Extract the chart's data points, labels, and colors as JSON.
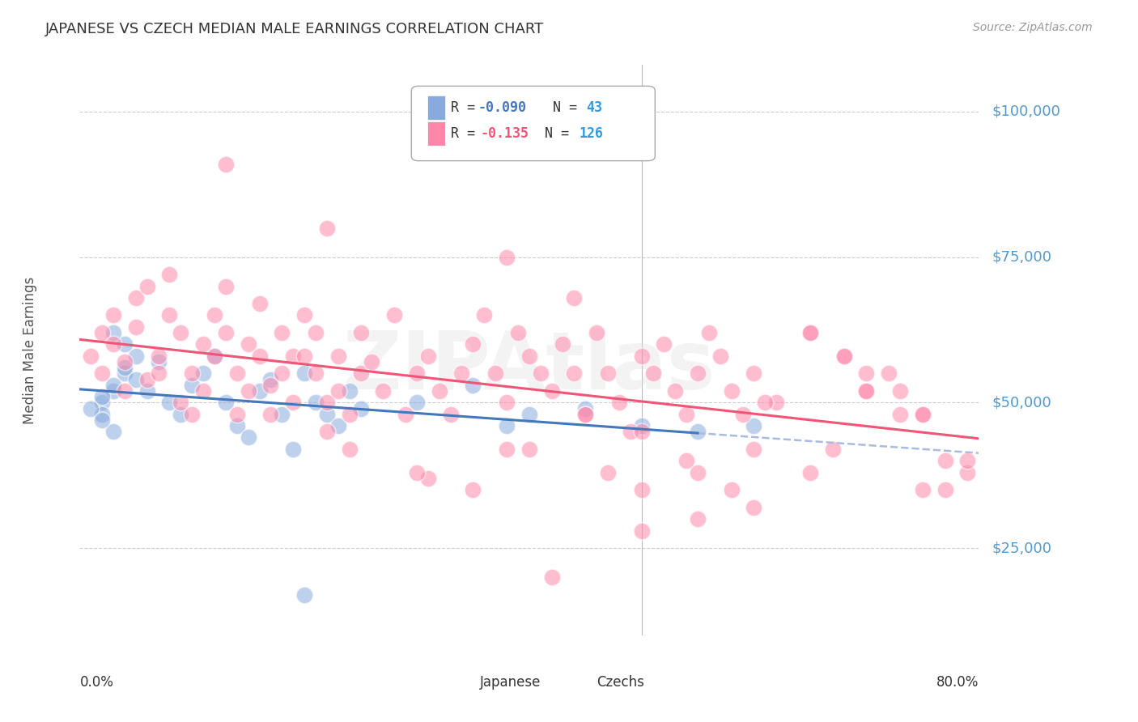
{
  "title": "JAPANESE VS CZECH MEDIAN MALE EARNINGS CORRELATION CHART",
  "source": "Source: ZipAtlas.com",
  "ylabel": "Median Male Earnings",
  "ytick_labels": [
    "$25,000",
    "$50,000",
    "$75,000",
    "$100,000"
  ],
  "ytick_values": [
    25000,
    50000,
    75000,
    100000
  ],
  "ylim": [
    10000,
    108000
  ],
  "xlim": [
    0.0,
    0.8
  ],
  "watermark": "ZIPAtlas",
  "background_color": "#ffffff",
  "title_color": "#333333",
  "ytick_color": "#5599CC",
  "source_color": "#999999",
  "grid_color": "#cccccc",
  "japanese_color": "#88AADD",
  "czech_color": "#FF88AA",
  "japanese_line_color": "#4477BB",
  "czech_line_color": "#EE5577",
  "japanese_dash_color": "#AABBDD",
  "japanese_points_x": [
    0.02,
    0.03,
    0.04,
    0.02,
    0.03,
    0.05,
    0.04,
    0.03,
    0.02,
    0.01,
    0.02,
    0.03,
    0.04,
    0.05,
    0.06,
    0.07,
    0.08,
    0.09,
    0.1,
    0.11,
    0.12,
    0.13,
    0.14,
    0.15,
    0.16,
    0.17,
    0.18,
    0.19,
    0.2,
    0.21,
    0.22,
    0.23,
    0.24,
    0.25,
    0.3,
    0.35,
    0.38,
    0.4,
    0.45,
    0.5,
    0.55,
    0.6,
    0.2
  ],
  "japanese_points_y": [
    50000,
    52000,
    55000,
    48000,
    45000,
    58000,
    60000,
    62000,
    51000,
    49000,
    47000,
    53000,
    56000,
    54000,
    52000,
    57000,
    50000,
    48000,
    53000,
    55000,
    58000,
    50000,
    46000,
    44000,
    52000,
    54000,
    48000,
    42000,
    55000,
    50000,
    48000,
    46000,
    52000,
    49000,
    50000,
    53000,
    46000,
    48000,
    49000,
    46000,
    45000,
    46000,
    17000
  ],
  "czech_points_x": [
    0.01,
    0.02,
    0.02,
    0.03,
    0.03,
    0.04,
    0.04,
    0.05,
    0.05,
    0.06,
    0.06,
    0.07,
    0.07,
    0.08,
    0.08,
    0.09,
    0.09,
    0.1,
    0.1,
    0.11,
    0.11,
    0.12,
    0.12,
    0.13,
    0.13,
    0.14,
    0.14,
    0.15,
    0.15,
    0.16,
    0.16,
    0.17,
    0.17,
    0.18,
    0.18,
    0.19,
    0.19,
    0.2,
    0.2,
    0.21,
    0.21,
    0.22,
    0.22,
    0.23,
    0.23,
    0.24,
    0.24,
    0.25,
    0.25,
    0.26,
    0.27,
    0.28,
    0.29,
    0.3,
    0.31,
    0.32,
    0.33,
    0.34,
    0.35,
    0.36,
    0.37,
    0.38,
    0.39,
    0.4,
    0.41,
    0.42,
    0.43,
    0.44,
    0.45,
    0.46,
    0.47,
    0.48,
    0.49,
    0.5,
    0.51,
    0.52,
    0.53,
    0.54,
    0.55,
    0.56,
    0.57,
    0.58,
    0.59,
    0.6,
    0.62,
    0.65,
    0.68,
    0.7,
    0.72,
    0.75,
    0.13,
    0.22,
    0.31,
    0.38,
    0.42,
    0.47,
    0.5,
    0.54,
    0.58,
    0.61,
    0.65,
    0.67,
    0.7,
    0.73,
    0.75,
    0.77,
    0.79,
    0.38,
    0.44,
    0.5,
    0.55,
    0.6,
    0.65,
    0.68,
    0.7,
    0.73,
    0.75,
    0.77,
    0.79,
    0.3,
    0.35,
    0.4,
    0.45,
    0.5,
    0.55,
    0.6
  ],
  "czech_points_y": [
    58000,
    62000,
    55000,
    60000,
    65000,
    57000,
    52000,
    63000,
    68000,
    54000,
    70000,
    58000,
    55000,
    72000,
    65000,
    50000,
    62000,
    55000,
    48000,
    60000,
    52000,
    65000,
    58000,
    70000,
    62000,
    55000,
    48000,
    60000,
    52000,
    67000,
    58000,
    53000,
    48000,
    62000,
    55000,
    58000,
    50000,
    65000,
    58000,
    55000,
    62000,
    50000,
    45000,
    58000,
    52000,
    48000,
    42000,
    55000,
    62000,
    57000,
    52000,
    65000,
    48000,
    55000,
    58000,
    52000,
    48000,
    55000,
    60000,
    65000,
    55000,
    50000,
    62000,
    58000,
    55000,
    52000,
    60000,
    55000,
    48000,
    62000,
    55000,
    50000,
    45000,
    58000,
    55000,
    60000,
    52000,
    48000,
    55000,
    62000,
    58000,
    52000,
    48000,
    55000,
    50000,
    62000,
    58000,
    52000,
    55000,
    48000,
    91000,
    80000,
    37000,
    42000,
    20000,
    38000,
    45000,
    40000,
    35000,
    50000,
    38000,
    42000,
    52000,
    48000,
    35000,
    40000,
    38000,
    75000,
    68000,
    28000,
    30000,
    32000,
    62000,
    58000,
    55000,
    52000,
    48000,
    35000,
    40000,
    38000,
    35000,
    42000,
    48000,
    35000,
    38000,
    42000,
    38000
  ]
}
